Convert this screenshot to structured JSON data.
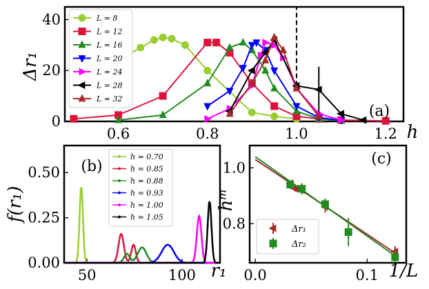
{
  "panel_labels": {
    "a": "(a)",
    "b": "(b)",
    "c": "(c)"
  },
  "chart_data": [
    {
      "id": "a",
      "type": "line",
      "xlabel": "h",
      "ylabel": "Δr₁",
      "xlim": [
        0.48,
        1.24
      ],
      "ylim": [
        0,
        45
      ],
      "xticks": [
        {
          "v": 0.6,
          "label": "0.6"
        },
        {
          "v": 0.8,
          "label": "0.8"
        },
        {
          "v": 1.0,
          "label": "1.0"
        },
        {
          "v": 1.2,
          "label": "1.2"
        }
      ],
      "yticks": [
        {
          "v": 0,
          "label": "0"
        },
        {
          "v": 20,
          "label": "20"
        },
        {
          "v": 40,
          "label": "40"
        }
      ],
      "vline": {
        "x": 1.0,
        "y0": 14,
        "y1": 45,
        "style": "dashed"
      },
      "legend": "upper-left",
      "series": [
        {
          "name": "L = 8",
          "color": "#9acd32",
          "marker": "circle",
          "x": [
            0.5,
            0.6,
            0.65,
            0.68,
            0.7,
            0.72,
            0.75,
            0.8,
            0.9,
            0.95,
            1.0
          ],
          "y": [
            16,
            24,
            29,
            32,
            33,
            32.5,
            30,
            20,
            3.5,
            2,
            1
          ]
        },
        {
          "name": "L = 12",
          "color": "#dc143c",
          "marker": "square",
          "x": [
            0.5,
            0.6,
            0.7,
            0.8,
            0.82,
            0.85,
            0.9,
            0.95,
            1.0,
            1.05,
            1.1,
            1.2
          ],
          "y": [
            1,
            2.5,
            10,
            31,
            31,
            27,
            15,
            6,
            2,
            1,
            0.5,
            0.2
          ]
        },
        {
          "name": "L = 16",
          "color": "#228b22",
          "marker": "triangle-up",
          "x": [
            0.6,
            0.7,
            0.8,
            0.85,
            0.88,
            0.9,
            0.93,
            0.95,
            1.0,
            1.05,
            1.1
          ],
          "y": [
            0.5,
            2.5,
            15,
            29,
            31,
            28,
            20,
            13,
            4,
            1,
            0.3
          ]
        },
        {
          "name": "L = 20",
          "color": "#0000ff",
          "marker": "triangle-down",
          "x": [
            0.8,
            0.85,
            0.88,
            0.9,
            0.91,
            0.93,
            0.95,
            1.0,
            1.05,
            1.1
          ],
          "y": [
            6,
            12,
            21,
            30,
            31,
            28,
            20,
            6,
            1.5,
            0.5
          ]
        },
        {
          "name": "L = 24",
          "color": "#ff00ff",
          "marker": "triangle-right",
          "x": [
            0.8,
            0.85,
            0.9,
            0.92,
            0.93,
            0.95,
            0.97,
            1.0,
            1.05,
            1.1
          ],
          "y": [
            1,
            5,
            14,
            26,
            31,
            30,
            25,
            13,
            3,
            0.5
          ]
        },
        {
          "name": "L = 28",
          "color": "#000000",
          "marker": "triangle-left",
          "x": [
            0.85,
            0.9,
            0.93,
            0.95,
            1.0,
            1.05,
            1.1,
            1.15
          ],
          "y": [
            4,
            20,
            27,
            32,
            14,
            12.5,
            3,
            0.5
          ],
          "yerr": [
            0,
            0,
            0,
            0,
            0,
            9,
            0,
            0
          ]
        },
        {
          "name": "L = 32",
          "color": "#a52a2a",
          "marker": "triangle-up",
          "x": [
            0.85,
            0.9,
            0.93,
            0.95,
            0.97,
            1.0,
            1.05
          ],
          "y": [
            3,
            15,
            24,
            33,
            28,
            13,
            2
          ]
        }
      ]
    },
    {
      "id": "b",
      "type": "line",
      "xlabel": "r₁",
      "ylabel": "f(r₁)",
      "xlim": [
        38,
        120
      ],
      "ylim": [
        0,
        0.65
      ],
      "xticks": [
        {
          "v": 50,
          "label": "50"
        },
        {
          "v": 100,
          "label": "100"
        }
      ],
      "yticks": [
        {
          "v": 0,
          "label": "0.00"
        },
        {
          "v": 0.25,
          "label": "0.25"
        },
        {
          "v": 0.5,
          "label": "0.50"
        }
      ],
      "legend": "upper-right",
      "series": [
        {
          "name": "h = 0.70",
          "color": "#9acd32",
          "peaks": [
            {
              "mu": 47,
              "sigma": 0.9,
              "amp": 0.42
            }
          ]
        },
        {
          "name": "h = 0.85",
          "color": "#dc143c",
          "peaks": [
            {
              "mu": 68,
              "sigma": 1.4,
              "amp": 0.16
            },
            {
              "mu": 74.5,
              "sigma": 1.2,
              "amp": 0.1
            }
          ]
        },
        {
          "name": "h = 0.88",
          "color": "#228b22",
          "peaks": [
            {
              "mu": 71,
              "sigma": 1.5,
              "amp": 0.05
            },
            {
              "mu": 79,
              "sigma": 2.3,
              "amp": 0.085
            }
          ]
        },
        {
          "name": "h = 0.93",
          "color": "#0000ff",
          "peaks": [
            {
              "mu": 92.5,
              "sigma": 3.2,
              "amp": 0.1
            }
          ]
        },
        {
          "name": "h = 1.00",
          "color": "#ff00ff",
          "peaks": [
            {
              "mu": 109,
              "sigma": 1.2,
              "amp": 0.26
            }
          ]
        },
        {
          "name": "h = 1.05",
          "color": "#000000",
          "peaks": [
            {
              "mu": 114.5,
              "sigma": 1.0,
              "amp": 0.34
            }
          ]
        }
      ]
    },
    {
      "id": "c",
      "type": "scatter",
      "xlabel": "1/L",
      "ylabel": "hᵐ",
      "xlim": [
        -0.005,
        0.135
      ],
      "ylim": [
        0.66,
        1.08
      ],
      "xticks": [
        {
          "v": 0.0,
          "label": "0.0"
        },
        {
          "v": 0.1,
          "label": "0.1"
        }
      ],
      "yticks": [
        {
          "v": 0.8,
          "label": "0.8"
        },
        {
          "v": 1.0,
          "label": "1.0"
        }
      ],
      "legend": "lower-left",
      "series": [
        {
          "name": "Δr₁",
          "color": "#a52a2a",
          "marker": "triangle-left",
          "x": [
            0.03125,
            0.0357,
            0.0417,
            0.0625,
            0.125
          ],
          "y": [
            0.945,
            0.925,
            0.92,
            0.86,
            0.7
          ],
          "yerr": [
            0.01,
            0.01,
            0.01,
            0.02,
            0.02
          ],
          "fit": [
            [
              0.0,
              1.03
            ],
            [
              0.125,
              0.695
            ]
          ]
        },
        {
          "name": "Δr₂",
          "color": "#228b22",
          "marker": "square",
          "x": [
            0.03125,
            0.0417,
            0.0625,
            0.0833,
            0.125
          ],
          "y": [
            0.94,
            0.925,
            0.87,
            0.77,
            0.68
          ],
          "yerr": [
            0.015,
            0.02,
            0.02,
            0.05,
            0.02
          ],
          "fit": [
            [
              0.0,
              1.04
            ],
            [
              0.125,
              0.685
            ]
          ]
        }
      ]
    }
  ]
}
